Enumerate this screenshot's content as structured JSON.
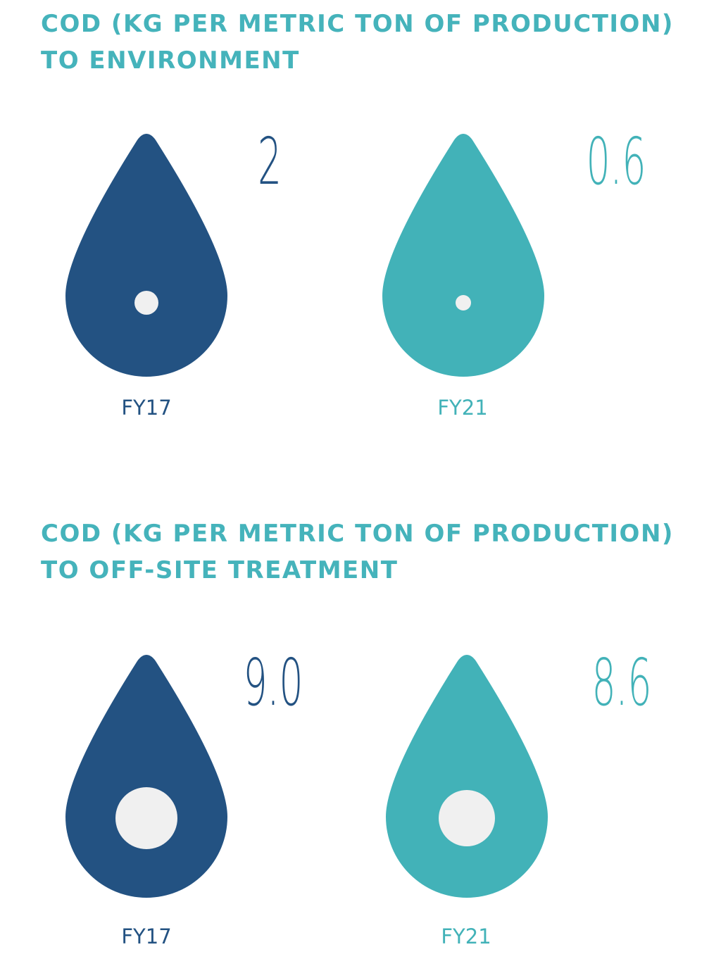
{
  "colors": {
    "title": "#45b3bb",
    "fy17": "#235282",
    "fy21": "#42b2b8",
    "dot": "#f0f0f0"
  },
  "chart_data": [
    {
      "type": "pictograph",
      "title_lines": [
        "COD (KG PER METRIC TON OF PRODUCTION)",
        "TO ENVIRONMENT"
      ],
      "categories": [
        "FY17",
        "FY21"
      ],
      "value_labels": [
        "2",
        "0.6"
      ],
      "values": [
        2,
        0.6
      ]
    },
    {
      "type": "pictograph",
      "title_lines": [
        "COD (KG PER METRIC TON OF PRODUCTION)",
        "TO OFF-SITE TREATMENT"
      ],
      "categories": [
        "FY17",
        "FY21"
      ],
      "value_labels": [
        "9.0",
        "8.6"
      ],
      "values": [
        9.0,
        8.6
      ]
    }
  ]
}
